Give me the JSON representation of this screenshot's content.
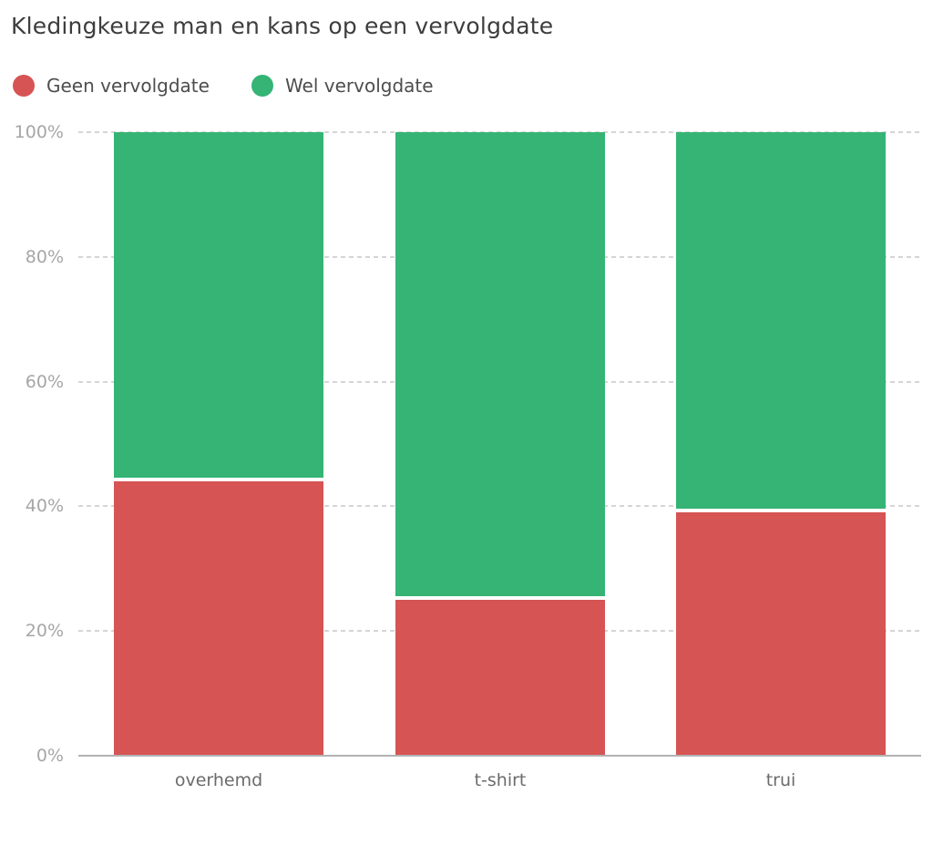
{
  "title": "Kledingkeuze man en kans op een vervolgdate",
  "legend": [
    {
      "label": "Geen vervolgdate",
      "color": "#d65454"
    },
    {
      "label": "Wel vervolgdate",
      "color": "#35b475"
    }
  ],
  "chart_data": {
    "type": "bar",
    "stacked": true,
    "percent": true,
    "title": "Kledingkeuze man en kans op een vervolgdate",
    "categories": [
      "overhemd",
      "t-shirt",
      "trui"
    ],
    "series": [
      {
        "name": "Geen vervolgdate",
        "color": "#d65454",
        "values": [
          44,
          25,
          39
        ]
      },
      {
        "name": "Wel vervolgdate",
        "color": "#35b475",
        "values": [
          56,
          75,
          61
        ]
      }
    ],
    "xlabel": "",
    "ylabel": "",
    "ylim": [
      0,
      100
    ],
    "yticks": [
      0,
      20,
      40,
      60,
      80,
      100
    ],
    "ytick_labels": [
      "0%",
      "20%",
      "40%",
      "60%",
      "80%",
      "100%"
    ],
    "grid": "horizontal-dashed",
    "legend_position": "top-left",
    "segment_gap_color": "#ffffff"
  },
  "colors": {
    "background": "#ffffff",
    "title_text": "#3d3d3d",
    "legend_text": "#4d4d4d",
    "ytick_text": "#a6a6a6",
    "xtick_text": "#6b6b6b",
    "gridline": "#d5d5d5",
    "axis_line": "#b3b3b3"
  }
}
